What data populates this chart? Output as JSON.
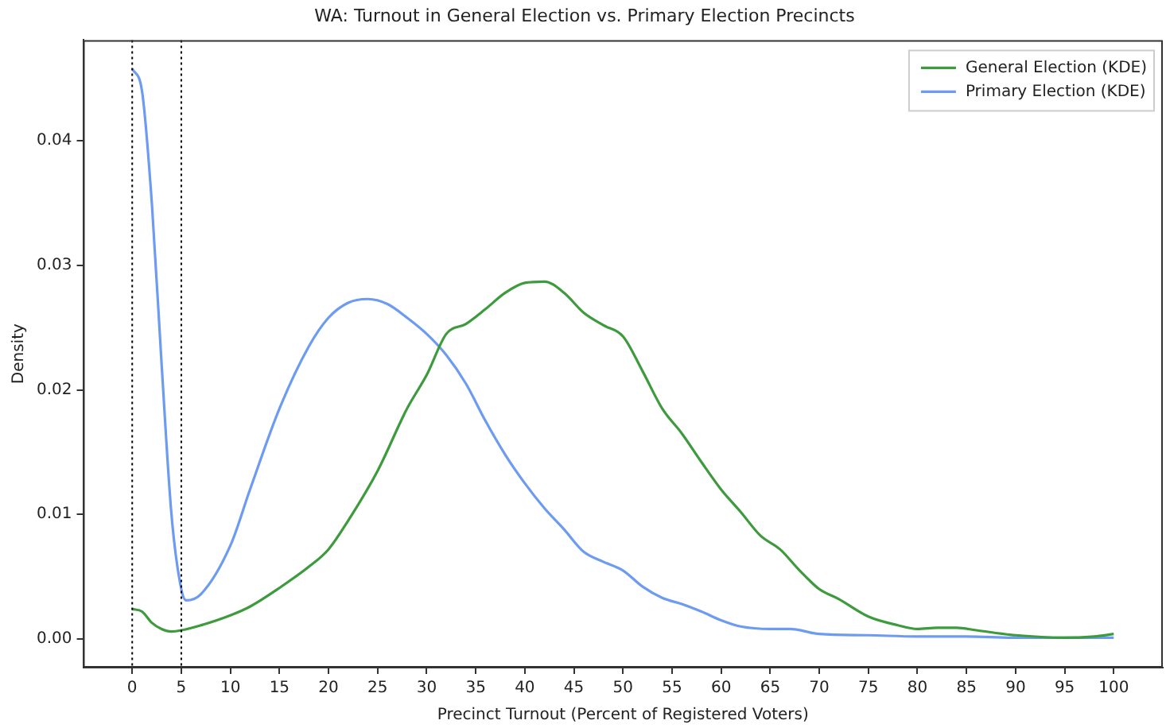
{
  "chart_data": {
    "type": "line",
    "title": "WA: Turnout in General Election vs. Primary Election Precincts",
    "xlabel": "Precinct Turnout (Percent of Registered Voters)",
    "ylabel": "Density",
    "xlim": [
      -5,
      105
    ],
    "xticks": [
      0,
      5,
      10,
      15,
      20,
      25,
      30,
      35,
      40,
      45,
      50,
      55,
      60,
      65,
      70,
      75,
      80,
      85,
      90,
      95,
      100
    ],
    "ylim": [
      -0.0023,
      0.0481
    ],
    "yticks": [
      {
        "value": 0,
        "label": "0.00"
      },
      {
        "value": 0.01,
        "label": "0.01"
      },
      {
        "value": 0.02,
        "label": "0.02"
      },
      {
        "value": 0.03,
        "label": "0.03"
      },
      {
        "value": 0.04,
        "label": "0.04"
      }
    ],
    "grid": false,
    "legend": "top right",
    "marker": "none",
    "line_style": "solid",
    "ref_lines": [
      {
        "axis": "x",
        "value": 0,
        "color": "#000000",
        "line_style": "dotted"
      },
      {
        "axis": "x",
        "value": 5,
        "color": "#000000",
        "line_style": "dotted"
      }
    ],
    "series": [
      {
        "name": "General Election (KDE)",
        "color": "#3d9a3d",
        "x": [
          0,
          1,
          2,
          3,
          4,
          5,
          7,
          10,
          12,
          15,
          18,
          20,
          22,
          25,
          28,
          30,
          32,
          34,
          36,
          38,
          40,
          42,
          44,
          46,
          48,
          50,
          52,
          54,
          56,
          58,
          60,
          62,
          64,
          66,
          68,
          70,
          72,
          75,
          78,
          80,
          82,
          84,
          86,
          90,
          95,
          98,
          100
        ],
        "values": [
          0.0024,
          0.0022,
          0.0013,
          0.0008,
          0.0006,
          0.0007,
          0.0011,
          0.0019,
          0.0026,
          0.0041,
          0.0058,
          0.0072,
          0.0095,
          0.0135,
          0.0185,
          0.0212,
          0.0245,
          0.0253,
          0.0265,
          0.0278,
          0.0286,
          0.0287,
          0.0278,
          0.0262,
          0.0252,
          0.0243,
          0.0215,
          0.0185,
          0.0165,
          0.0142,
          0.012,
          0.0102,
          0.0083,
          0.0072,
          0.0055,
          0.004,
          0.0032,
          0.0018,
          0.0011,
          0.0008,
          0.0009,
          0.0009,
          0.0007,
          0.0003,
          0.0001,
          0.0002,
          0.0004
        ]
      },
      {
        "name": "Primary Election (KDE)",
        "color": "#6d9bf1",
        "x": [
          0,
          1,
          2,
          3,
          4,
          5,
          5.5,
          7,
          10,
          12,
          15,
          18,
          20,
          22,
          24,
          26,
          28,
          30,
          32,
          34,
          36,
          38,
          40,
          42,
          44,
          46,
          48,
          50,
          52,
          54,
          56,
          58,
          60,
          62,
          65,
          67,
          70,
          75,
          80,
          85,
          90,
          95,
          100
        ],
        "values": [
          0.0458,
          0.044,
          0.035,
          0.022,
          0.01,
          0.004,
          0.0031,
          0.0036,
          0.0075,
          0.012,
          0.0185,
          0.0235,
          0.0258,
          0.027,
          0.0273,
          0.0269,
          0.0258,
          0.0245,
          0.0228,
          0.0205,
          0.0175,
          0.0148,
          0.0125,
          0.0105,
          0.0088,
          0.007,
          0.0062,
          0.0055,
          0.0042,
          0.0033,
          0.0028,
          0.0022,
          0.0015,
          0.001,
          0.0008,
          0.0008,
          0.0004,
          0.0003,
          0.0002,
          0.0002,
          0.0001,
          0.0001,
          0.0001
        ]
      }
    ]
  }
}
